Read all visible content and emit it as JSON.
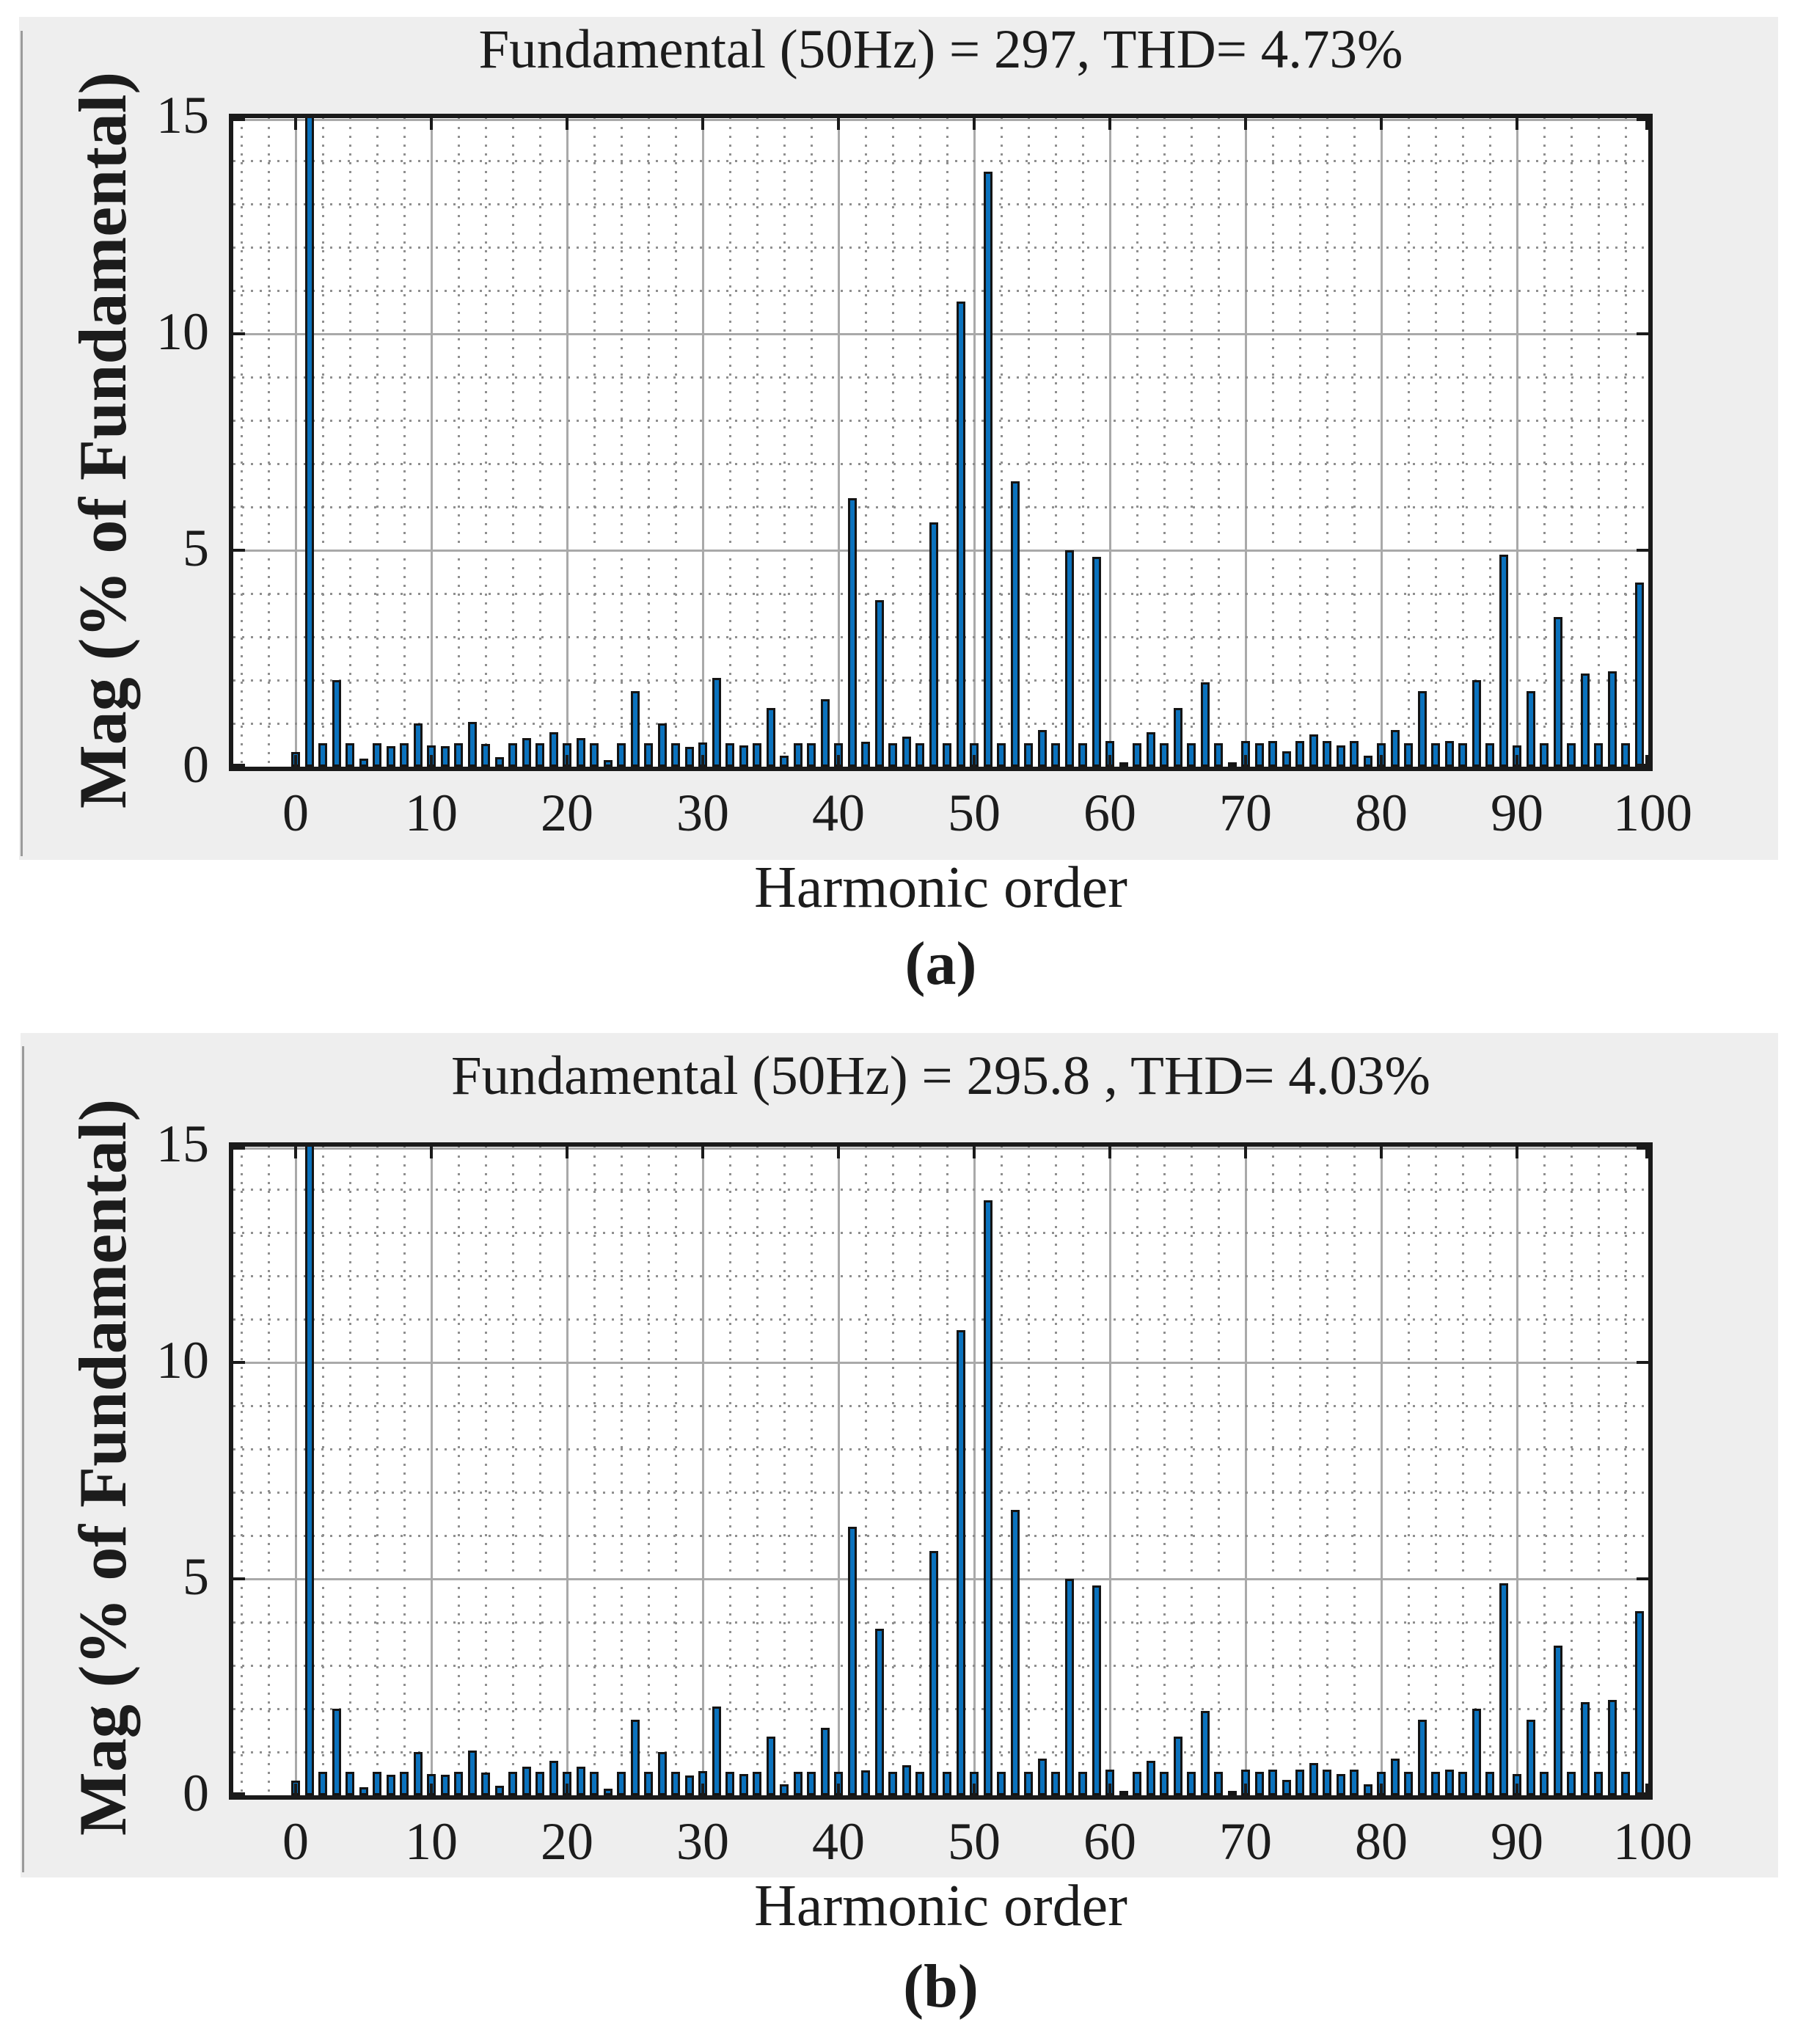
{
  "figure": {
    "background": "#ffffff",
    "panel_background": "#eeeeee",
    "plot_background": "#ffffff",
    "axis_color": "#1a1a1a",
    "grid_major_color": "#a9a9a9",
    "grid_minor_color": "#8f8f8f",
    "bar_fill": "#0b72bd",
    "bar_edge": "#141414",
    "text_color": "#1c1c1c",
    "note": "Two MATLAB FFT-analysis harmonic spectra; fundamental bar at harmonic 1 equals 100% and is clipped by the axis top (y-limit 15)."
  },
  "chart_data": [
    {
      "type": "bar",
      "title": "Fundamental (50Hz) = 297, THD= 4.73%",
      "xlabel": "Harmonic order",
      "ylabel": "Mag (% of Fundamental)",
      "caption": "(a)",
      "xlim": [
        -5,
        100
      ],
      "ylim": [
        0,
        15.15
      ],
      "xticks": [
        0,
        10,
        20,
        30,
        40,
        50,
        60,
        70,
        80,
        90,
        100
      ],
      "yticks": [
        0,
        5,
        10,
        15
      ],
      "grid": "major solid, minor dotted (x every 2, y every 1)",
      "x_is_harmonic_index": true,
      "values": [
        0.34,
        100,
        0.54,
        2.0,
        0.54,
        0.18,
        0.54,
        0.47,
        0.54,
        1.0,
        0.5,
        0.47,
        0.54,
        1.04,
        0.52,
        0.22,
        0.54,
        0.66,
        0.54,
        0.8,
        0.54,
        0.66,
        0.54,
        0.16,
        0.54,
        1.74,
        0.54,
        1.0,
        0.54,
        0.45,
        0.56,
        2.05,
        0.54,
        0.5,
        0.54,
        1.36,
        0.26,
        0.54,
        0.54,
        1.56,
        0.54,
        6.2,
        0.58,
        3.85,
        0.54,
        0.7,
        0.54,
        5.65,
        0.54,
        10.75,
        0.54,
        13.75,
        0.54,
        6.6,
        0.54,
        0.85,
        0.54,
        5.0,
        0.54,
        4.85,
        0.6,
        0.1,
        0.54,
        0.8,
        0.54,
        1.35,
        0.54,
        1.95,
        0.54,
        0.1,
        0.6,
        0.54,
        0.6,
        0.35,
        0.6,
        0.75,
        0.6,
        0.5,
        0.6,
        0.25,
        0.55,
        0.85,
        0.55,
        1.75,
        0.55,
        0.6,
        0.55,
        2.0,
        0.55,
        4.9,
        0.5,
        1.75,
        0.55,
        3.45,
        0.55,
        2.15,
        0.55,
        2.2,
        0.55,
        4.25
      ]
    },
    {
      "type": "bar",
      "title": "Fundamental (50Hz) = 295.8 , THD= 4.03%",
      "xlabel": "Harmonic order",
      "ylabel": "Mag (% of Fundamental)",
      "caption": "(b)",
      "xlim": [
        -5,
        100
      ],
      "ylim": [
        0,
        15.15
      ],
      "xticks": [
        0,
        10,
        20,
        30,
        40,
        50,
        60,
        70,
        80,
        90,
        100
      ],
      "yticks": [
        0,
        5,
        10,
        15
      ],
      "grid": "major solid, minor dotted (x every 2, y every 1)",
      "x_is_harmonic_index": true,
      "values": [
        0.34,
        100,
        0.54,
        2.0,
        0.54,
        0.18,
        0.54,
        0.47,
        0.54,
        1.0,
        0.5,
        0.47,
        0.54,
        1.04,
        0.52,
        0.22,
        0.54,
        0.66,
        0.54,
        0.8,
        0.54,
        0.66,
        0.54,
        0.16,
        0.54,
        1.74,
        0.54,
        1.0,
        0.54,
        0.45,
        0.56,
        2.05,
        0.54,
        0.5,
        0.54,
        1.36,
        0.26,
        0.54,
        0.54,
        1.56,
        0.54,
        6.2,
        0.58,
        3.85,
        0.54,
        0.7,
        0.54,
        5.65,
        0.54,
        10.75,
        0.54,
        13.75,
        0.54,
        6.6,
        0.54,
        0.85,
        0.54,
        5.0,
        0.54,
        4.85,
        0.6,
        0.1,
        0.54,
        0.8,
        0.54,
        1.35,
        0.54,
        1.95,
        0.54,
        0.1,
        0.6,
        0.54,
        0.6,
        0.35,
        0.6,
        0.75,
        0.6,
        0.5,
        0.6,
        0.25,
        0.55,
        0.85,
        0.55,
        1.75,
        0.55,
        0.6,
        0.55,
        2.0,
        0.55,
        4.9,
        0.5,
        1.75,
        0.55,
        3.45,
        0.55,
        2.15,
        0.55,
        2.2,
        0.55,
        4.25
      ]
    }
  ]
}
